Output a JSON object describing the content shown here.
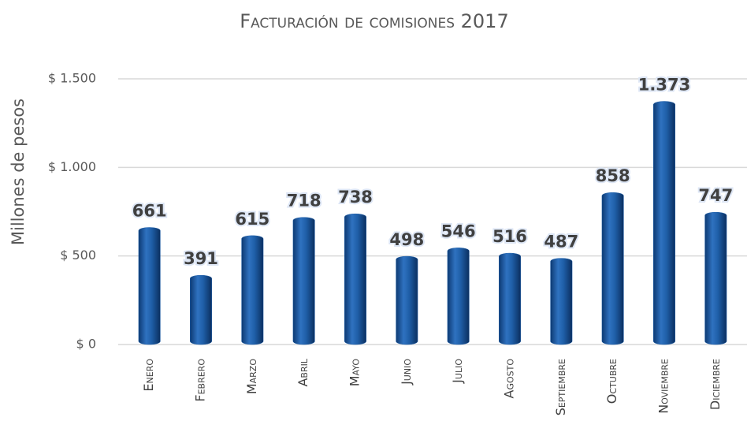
{
  "chart_data": {
    "type": "bar",
    "title": "Facturación de comisiones 2017",
    "y_label": "Millones de pesos",
    "categories": [
      "Enero",
      "Febrero",
      "Marzo",
      "Abril",
      "Mayo",
      "Junio",
      "Julio",
      "Agosto",
      "Septiembre",
      "Octubre",
      "Noviembre",
      "Diciembre"
    ],
    "values": [
      661,
      391,
      615,
      718,
      738,
      498,
      546,
      516,
      487,
      858,
      1373,
      747
    ],
    "value_labels": [
      "661",
      "391",
      "615",
      "718",
      "738",
      "498",
      "546",
      "516",
      "487",
      "858",
      "1.373",
      "747"
    ],
    "color": "#1f5fa8",
    "ylim": [
      0,
      1500
    ],
    "yticks": [
      {
        "value": 0,
        "label": "$ 0"
      },
      {
        "value": 500,
        "label": "$ 500"
      },
      {
        "value": 1000,
        "label": "$ 1.000"
      },
      {
        "value": 1500,
        "label": "$ 1.500"
      }
    ],
    "grid": true
  }
}
